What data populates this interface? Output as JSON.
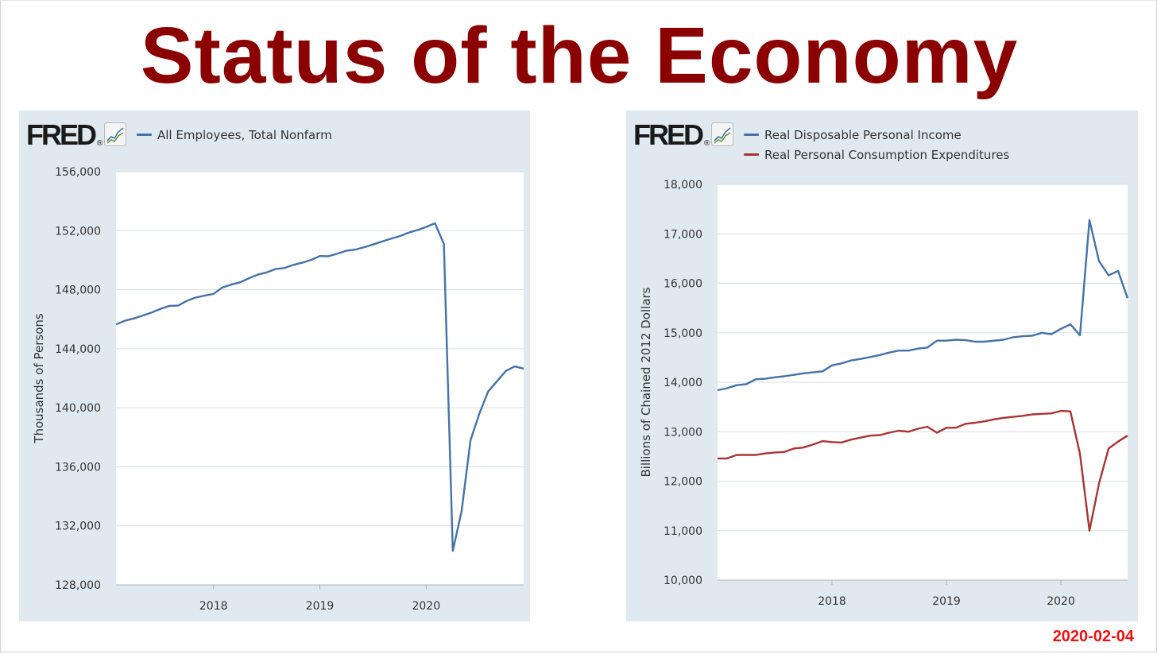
{
  "slide": {
    "title": "Status of the Economy",
    "date": "2020-02-04",
    "title_color": "#8b0000",
    "date_color": "#ee1111"
  },
  "brand": {
    "logo_text": "FRED",
    "logo_icon": "chart-line-icon"
  },
  "chart_data": [
    {
      "type": "line",
      "title": "",
      "xlabel": "",
      "ylabel": "Thousands of Persons",
      "ylim": [
        128000,
        156000
      ],
      "xlim": [
        2017.083,
        2020.917
      ],
      "x_ticks": [
        2018,
        2019,
        2020
      ],
      "x_tick_labels": [
        "2018",
        "2019",
        "2020"
      ],
      "y_ticks": [
        128000,
        132000,
        136000,
        140000,
        144000,
        148000,
        152000,
        156000
      ],
      "y_tick_labels": [
        "128,000",
        "132,000",
        "136,000",
        "140,000",
        "144,000",
        "148,000",
        "152,000",
        "156,000"
      ],
      "grid": true,
      "legend": "top-left",
      "series": [
        {
          "name": "All Employees, Total Nonfarm",
          "color": "#4572a7",
          "x": [
            2017.083,
            2017.167,
            2017.25,
            2017.333,
            2017.417,
            2017.5,
            2017.583,
            2017.667,
            2017.75,
            2017.833,
            2017.917,
            2018.0,
            2018.083,
            2018.167,
            2018.25,
            2018.333,
            2018.417,
            2018.5,
            2018.583,
            2018.667,
            2018.75,
            2018.833,
            2018.917,
            2019.0,
            2019.083,
            2019.167,
            2019.25,
            2019.333,
            2019.417,
            2019.5,
            2019.583,
            2019.667,
            2019.75,
            2019.833,
            2019.917,
            2020.0,
            2020.083,
            2020.167,
            2020.25,
            2020.333,
            2020.417,
            2020.5,
            2020.583,
            2020.667,
            2020.75,
            2020.833,
            2020.917
          ],
          "values": [
            145650,
            145900,
            146050,
            146250,
            146450,
            146700,
            146900,
            146920,
            147250,
            147470,
            147600,
            147720,
            148150,
            148350,
            148500,
            148780,
            149020,
            149170,
            149400,
            149470,
            149680,
            149830,
            150020,
            150280,
            150270,
            150450,
            150640,
            150720,
            150880,
            151060,
            151260,
            151450,
            151630,
            151860,
            152040,
            152250,
            152500,
            151100,
            130300,
            133000,
            137800,
            139600,
            141100,
            141800,
            142500,
            142800,
            142650
          ]
        }
      ]
    },
    {
      "type": "line",
      "title": "",
      "xlabel": "",
      "ylabel": "Billions of Chained 2012 Dollars",
      "ylim": [
        10000,
        18000
      ],
      "xlim": [
        2017.0,
        2020.583
      ],
      "x_ticks": [
        2018,
        2019,
        2020
      ],
      "x_tick_labels": [
        "2018",
        "2019",
        "2020"
      ],
      "y_ticks": [
        10000,
        11000,
        12000,
        13000,
        14000,
        15000,
        16000,
        17000,
        18000
      ],
      "y_tick_labels": [
        "10,000",
        "11,000",
        "12,000",
        "13,000",
        "14,000",
        "15,000",
        "16,000",
        "17,000",
        "18,000"
      ],
      "grid": true,
      "legend": "top-left",
      "series": [
        {
          "name": "Real Disposable Personal Income",
          "color": "#4572a7",
          "x": [
            2017.0,
            2017.083,
            2017.167,
            2017.25,
            2017.333,
            2017.417,
            2017.5,
            2017.583,
            2017.667,
            2017.75,
            2017.833,
            2017.917,
            2018.0,
            2018.083,
            2018.167,
            2018.25,
            2018.333,
            2018.417,
            2018.5,
            2018.583,
            2018.667,
            2018.75,
            2018.833,
            2018.917,
            2019.0,
            2019.083,
            2019.167,
            2019.25,
            2019.333,
            2019.417,
            2019.5,
            2019.583,
            2019.667,
            2019.75,
            2019.833,
            2019.917,
            2020.0,
            2020.083,
            2020.167,
            2020.25,
            2020.333,
            2020.417,
            2020.5,
            2020.583
          ],
          "values": [
            13840,
            13880,
            13940,
            13960,
            14060,
            14070,
            14100,
            14120,
            14150,
            14180,
            14200,
            14220,
            14340,
            14380,
            14440,
            14470,
            14510,
            14550,
            14600,
            14640,
            14640,
            14680,
            14700,
            14840,
            14840,
            14860,
            14850,
            14820,
            14820,
            14840,
            14860,
            14910,
            14930,
            14940,
            15000,
            14970,
            15080,
            15170,
            14950,
            17280,
            16450,
            16160,
            16250,
            15700
          ]
        },
        {
          "name": "Real Personal Consumption Expenditures",
          "color": "#aa3333",
          "x": [
            2017.0,
            2017.083,
            2017.167,
            2017.25,
            2017.333,
            2017.417,
            2017.5,
            2017.583,
            2017.667,
            2017.75,
            2017.833,
            2017.917,
            2018.0,
            2018.083,
            2018.167,
            2018.25,
            2018.333,
            2018.417,
            2018.5,
            2018.583,
            2018.667,
            2018.75,
            2018.833,
            2018.917,
            2019.0,
            2019.083,
            2019.167,
            2019.25,
            2019.333,
            2019.417,
            2019.5,
            2019.583,
            2019.667,
            2019.75,
            2019.833,
            2019.917,
            2020.0,
            2020.083,
            2020.167,
            2020.25,
            2020.333,
            2020.417,
            2020.5,
            2020.583
          ],
          "values": [
            12460,
            12460,
            12530,
            12530,
            12530,
            12560,
            12580,
            12590,
            12660,
            12680,
            12740,
            12810,
            12790,
            12780,
            12840,
            12880,
            12920,
            12930,
            12980,
            13020,
            13000,
            13060,
            13100,
            12980,
            13080,
            13080,
            13160,
            13180,
            13210,
            13250,
            13280,
            13300,
            13320,
            13350,
            13360,
            13370,
            13420,
            13410,
            12550,
            11000,
            11950,
            12660,
            12800,
            12920
          ]
        }
      ]
    }
  ]
}
